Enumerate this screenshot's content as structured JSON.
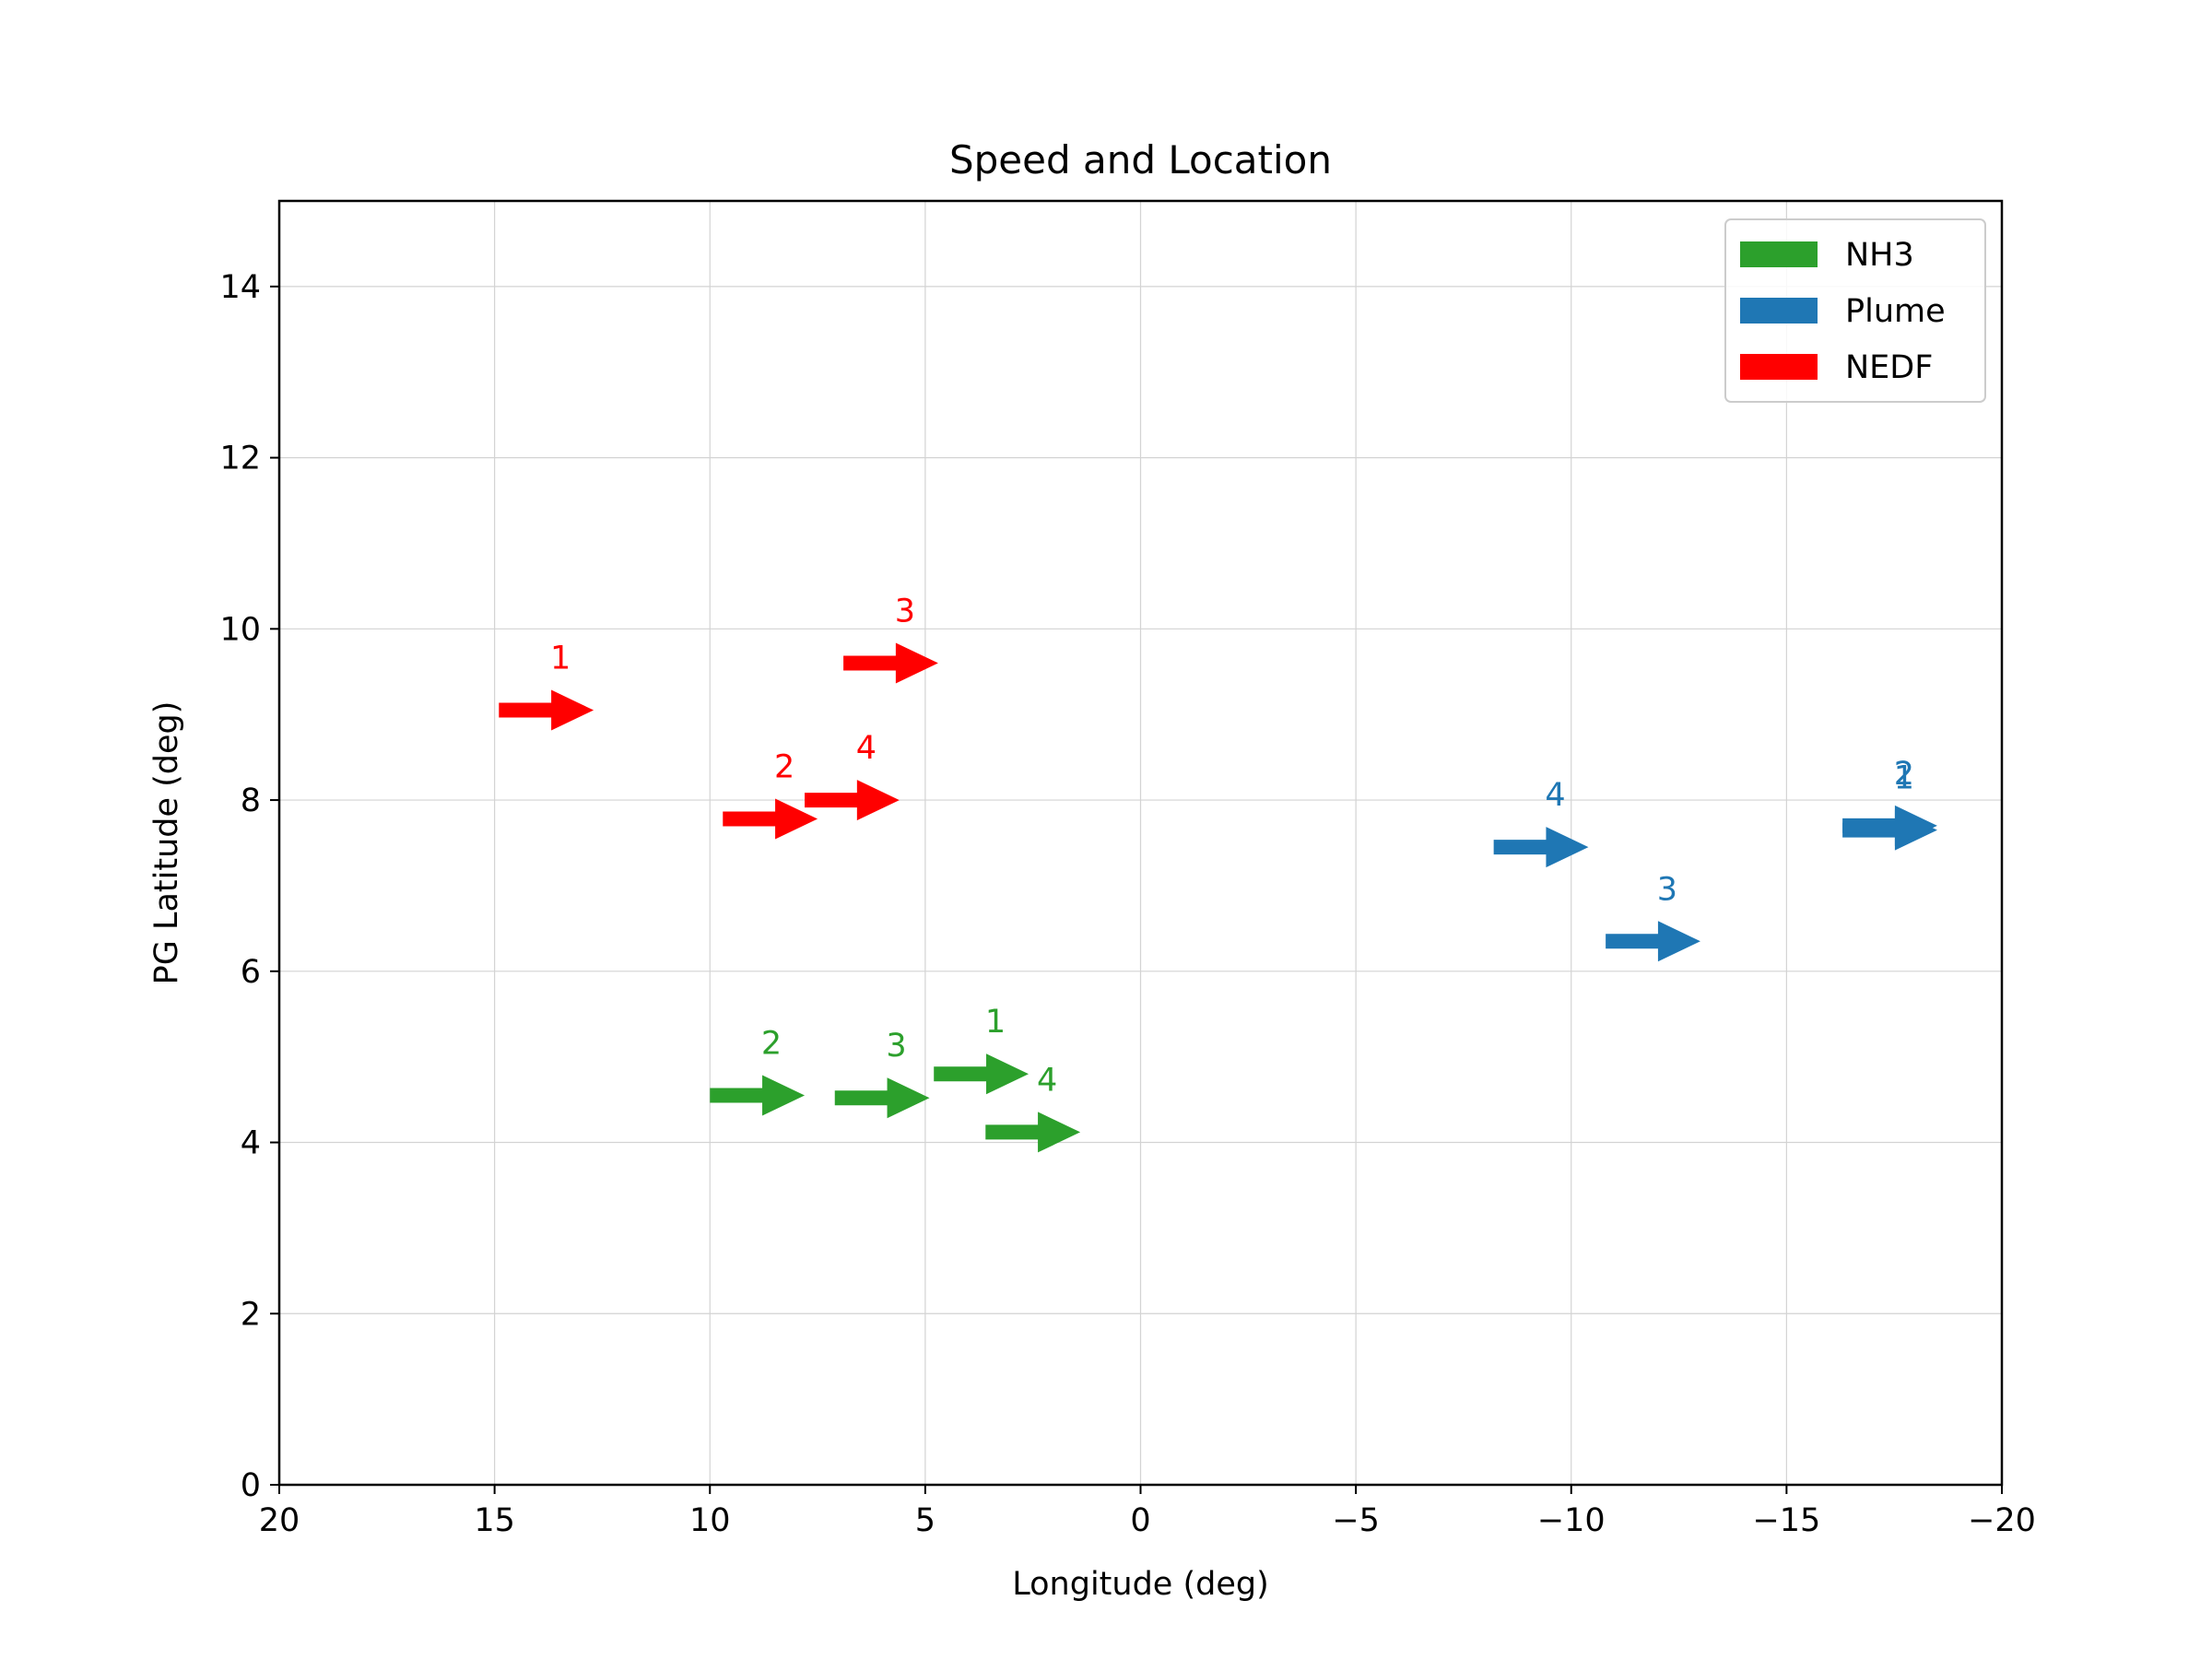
{
  "chart_data": {
    "type": "scatter",
    "title": "Speed and Location",
    "xlabel": "Longitude (deg)",
    "ylabel": "PG Latitude (deg)",
    "xlim": [
      20,
      -20
    ],
    "ylim": [
      0,
      15
    ],
    "xticks": [
      20,
      15,
      10,
      5,
      0,
      -5,
      -10,
      -15,
      -20
    ],
    "xtick_labels": [
      "20",
      "15",
      "10",
      "5",
      "0",
      "−5",
      "−10",
      "−15",
      "−20"
    ],
    "yticks": [
      0,
      2,
      4,
      6,
      8,
      10,
      12,
      14
    ],
    "ytick_labels": [
      "0",
      "2",
      "4",
      "6",
      "8",
      "10",
      "12",
      "14"
    ],
    "grid": true,
    "legend_position": "top-right",
    "series": [
      {
        "name": "NH3",
        "color": "#2ca02c",
        "points": [
          {
            "label": "1",
            "x": 4.8,
            "y": 4.8,
            "dx": -2.2
          },
          {
            "label": "2",
            "x": 10.0,
            "y": 4.55,
            "dx": -2.2
          },
          {
            "label": "3",
            "x": 7.1,
            "y": 4.52,
            "dx": -2.2
          },
          {
            "label": "4",
            "x": 3.6,
            "y": 4.12,
            "dx": -2.2
          }
        ]
      },
      {
        "name": "Plume",
        "color": "#1f77b4",
        "points": [
          {
            "label": "1",
            "x": -16.3,
            "y": 7.65,
            "dx": -2.2
          },
          {
            "label": "2",
            "x": -16.3,
            "y": 7.7,
            "dx": -2.2
          },
          {
            "label": "3",
            "x": -10.8,
            "y": 6.35,
            "dx": -2.2
          },
          {
            "label": "4",
            "x": -8.2,
            "y": 7.45,
            "dx": -2.2
          }
        ]
      },
      {
        "name": "NEDF",
        "color": "#ff0000",
        "points": [
          {
            "label": "1",
            "x": 14.9,
            "y": 9.05,
            "dx": -2.2
          },
          {
            "label": "2",
            "x": 9.7,
            "y": 7.78,
            "dx": -2.2
          },
          {
            "label": "3",
            "x": 6.9,
            "y": 9.6,
            "dx": -2.2
          },
          {
            "label": "4",
            "x": 7.8,
            "y": 8.0,
            "dx": -2.2
          }
        ]
      }
    ]
  }
}
